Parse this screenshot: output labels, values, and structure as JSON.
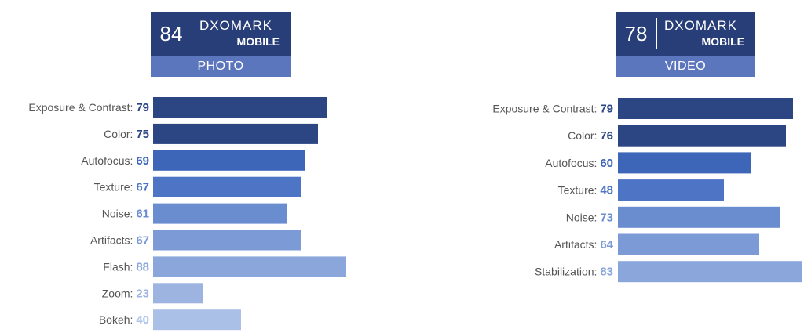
{
  "badges": {
    "photo": {
      "score": "84",
      "brand": "DXOMARK",
      "sub": "MOBILE",
      "category": "PHOTO"
    },
    "video": {
      "score": "78",
      "brand": "DXOMARK",
      "sub": "MOBILE",
      "category": "VIDEO"
    }
  },
  "colors": {
    "badge_dark": "#283e78",
    "badge_light": "#5c76bd",
    "bar_shades": [
      "#2c4583",
      "#2c4583",
      "#3d66b9",
      "#4e74c6",
      "#6a8dd0",
      "#7b9ad6",
      "#8aa6db",
      "#9db4e0",
      "#abc0e6"
    ]
  },
  "chart_data": [
    {
      "type": "bar",
      "orientation": "horizontal",
      "title": "",
      "categories": [
        "Exposure & Contrast",
        "Color",
        "Autofocus",
        "Texture",
        "Noise",
        "Artifacts",
        "Flash",
        "Zoom",
        "Bokeh"
      ],
      "values": [
        79,
        75,
        69,
        67,
        61,
        67,
        88,
        23,
        40
      ],
      "xlim": [
        0,
        100
      ],
      "grid": false
    },
    {
      "type": "bar",
      "orientation": "horizontal",
      "title": "",
      "categories": [
        "Exposure & Contrast",
        "Color",
        "Autofocus",
        "Texture",
        "Noise",
        "Artifacts",
        "Stabilization"
      ],
      "values": [
        79,
        76,
        60,
        48,
        73,
        64,
        83
      ],
      "xlim": [
        0,
        100
      ],
      "grid": false
    }
  ]
}
